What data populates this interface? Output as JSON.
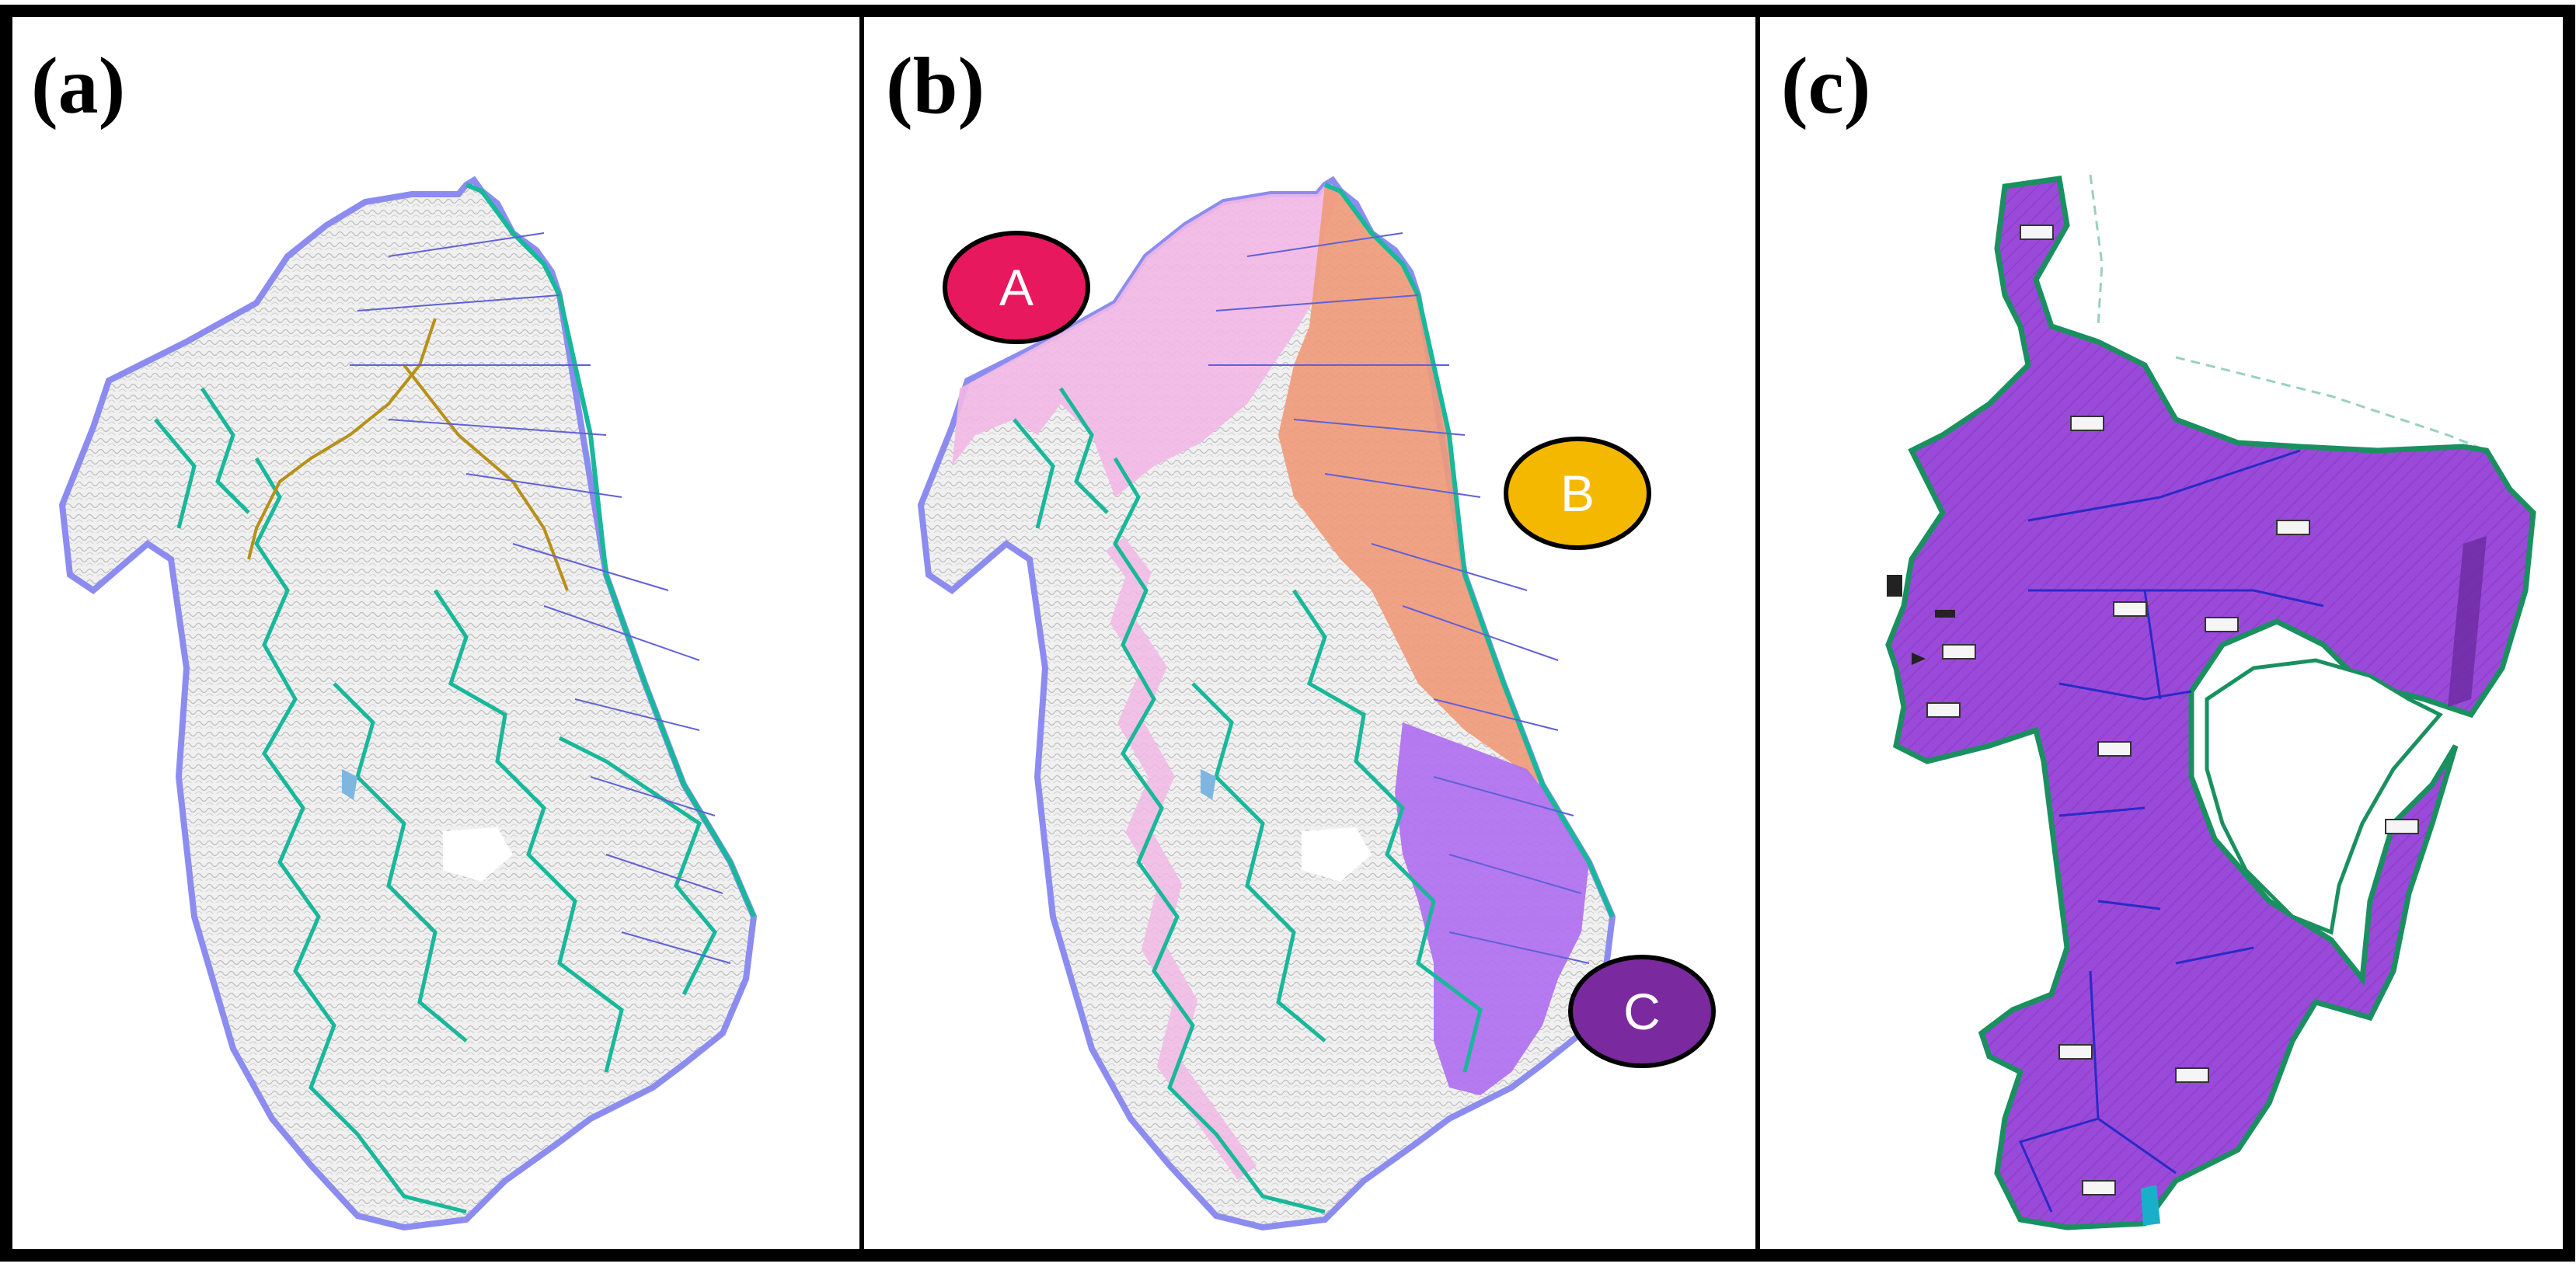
{
  "figure": {
    "panels": [
      {
        "id": "a",
        "label": "(a)"
      },
      {
        "id": "b",
        "label": "(b)"
      },
      {
        "id": "c",
        "label": "(c)"
      }
    ],
    "zones": [
      {
        "id": "A",
        "label": "A",
        "color": "#e8185e",
        "overlay_color": "#f2b8e6"
      },
      {
        "id": "B",
        "label": "B",
        "color": "#f5b800",
        "overlay_color": "#f09a78"
      },
      {
        "id": "C",
        "label": "C",
        "color": "#7a2a9e",
        "overlay_color": "#b070f0"
      }
    ],
    "colors": {
      "frame": "#000000",
      "terrain": "#c8c8c8",
      "terrain_fill": "#ececec",
      "outline": "#8c8cf0",
      "trail": "#18b89a",
      "path": "#b89018",
      "subdivision": "#6060d8",
      "zone_c_fill": "#9a4ad8",
      "zone_c_border": "#1a9060"
    }
  }
}
